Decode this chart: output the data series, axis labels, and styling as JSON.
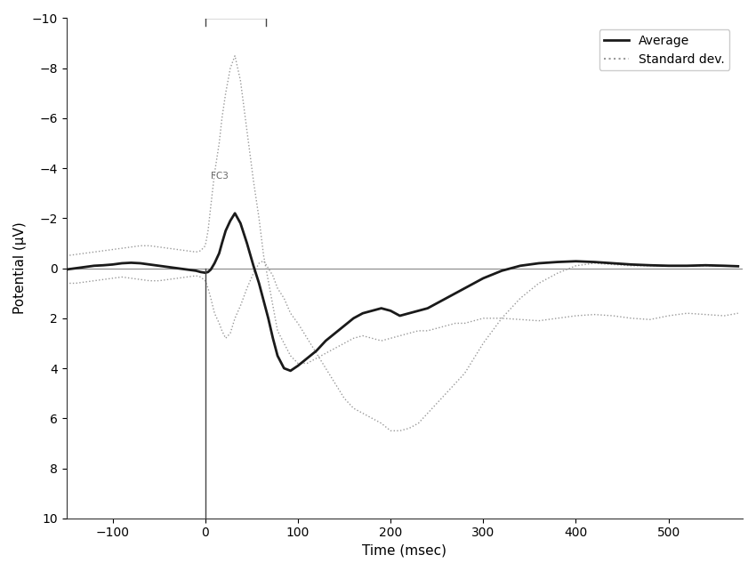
{
  "title": "",
  "xlabel": "Time (msec)",
  "ylabel": "Potential (μV)",
  "xlim": [
    -150,
    580
  ],
  "ylim": [
    10,
    -10
  ],
  "xticks": [
    -100,
    0,
    100,
    200,
    300,
    400,
    500
  ],
  "yticks": [
    -10,
    -8,
    -6,
    -4,
    -2,
    0,
    2,
    4,
    6,
    8,
    10
  ],
  "vline_x": 0,
  "hline_y": 0,
  "hbar_y": -10,
  "hbar_x1": 0,
  "hbar_x2": 65,
  "fc3_label": "FC3",
  "fc3_x": 6,
  "fc3_y": -3.7,
  "legend_labels": [
    "Average",
    "Standard dev."
  ],
  "avg_color": "#1a1a1a",
  "std_color": "#999999",
  "avg_linewidth": 2.0,
  "std_linewidth": 1.0,
  "background_color": "#ffffff",
  "avg_x": [
    -150,
    -140,
    -130,
    -120,
    -110,
    -100,
    -90,
    -80,
    -70,
    -60,
    -50,
    -40,
    -30,
    -20,
    -10,
    -5,
    0,
    3,
    6,
    10,
    15,
    18,
    22,
    27,
    32,
    38,
    45,
    52,
    58,
    63,
    68,
    73,
    78,
    85,
    92,
    100,
    110,
    120,
    130,
    140,
    150,
    160,
    170,
    180,
    190,
    200,
    210,
    220,
    230,
    240,
    250,
    260,
    270,
    280,
    290,
    300,
    320,
    340,
    360,
    380,
    400,
    420,
    440,
    460,
    480,
    500,
    520,
    540,
    560,
    575
  ],
  "avg_y": [
    0.05,
    0.0,
    -0.05,
    -0.1,
    -0.12,
    -0.15,
    -0.2,
    -0.22,
    -0.2,
    -0.15,
    -0.1,
    -0.05,
    0.0,
    0.05,
    0.1,
    0.15,
    0.18,
    0.15,
    0.05,
    -0.2,
    -0.6,
    -1.0,
    -1.5,
    -1.9,
    -2.2,
    -1.8,
    -1.0,
    -0.1,
    0.6,
    1.3,
    2.0,
    2.8,
    3.5,
    4.0,
    4.1,
    3.9,
    3.6,
    3.3,
    2.9,
    2.6,
    2.3,
    2.0,
    1.8,
    1.7,
    1.6,
    1.7,
    1.9,
    1.8,
    1.7,
    1.6,
    1.4,
    1.2,
    1.0,
    0.8,
    0.6,
    0.4,
    0.1,
    -0.1,
    -0.2,
    -0.25,
    -0.28,
    -0.25,
    -0.2,
    -0.15,
    -0.12,
    -0.1,
    -0.1,
    -0.12,
    -0.1,
    -0.08
  ],
  "std_upper_x": [
    -150,
    -140,
    -130,
    -120,
    -110,
    -100,
    -90,
    -80,
    -70,
    -60,
    -50,
    -40,
    -30,
    -20,
    -10,
    -5,
    0,
    3,
    6,
    10,
    15,
    18,
    22,
    27,
    32,
    38,
    45,
    52,
    58,
    63,
    68,
    73,
    78,
    85,
    92,
    100,
    110,
    120,
    130,
    140,
    150,
    160,
    170,
    180,
    190,
    200,
    210,
    220,
    230,
    240,
    250,
    260,
    270,
    280,
    290,
    300,
    320,
    340,
    360,
    380,
    400,
    420,
    440,
    460,
    480,
    500,
    520,
    540,
    560,
    575
  ],
  "std_upper_y": [
    -0.5,
    -0.55,
    -0.6,
    -0.65,
    -0.7,
    -0.75,
    -0.8,
    -0.85,
    -0.9,
    -0.9,
    -0.85,
    -0.8,
    -0.75,
    -0.7,
    -0.65,
    -0.7,
    -0.9,
    -1.5,
    -2.5,
    -3.8,
    -5.0,
    -6.0,
    -7.0,
    -8.0,
    -8.5,
    -7.5,
    -5.5,
    -3.5,
    -2.0,
    -0.5,
    0.5,
    1.5,
    2.5,
    3.0,
    3.5,
    3.8,
    3.8,
    3.6,
    3.4,
    3.2,
    3.0,
    2.8,
    2.7,
    2.8,
    2.9,
    2.8,
    2.7,
    2.6,
    2.5,
    2.5,
    2.4,
    2.3,
    2.2,
    2.2,
    2.1,
    2.0,
    2.0,
    2.05,
    2.1,
    2.0,
    1.9,
    1.85,
    1.9,
    2.0,
    2.05,
    1.9,
    1.8,
    1.85,
    1.9,
    1.8
  ],
  "std_lower_x": [
    -150,
    -140,
    -130,
    -120,
    -110,
    -100,
    -90,
    -80,
    -70,
    -60,
    -50,
    -40,
    -30,
    -20,
    -10,
    -5,
    0,
    3,
    6,
    10,
    15,
    18,
    22,
    27,
    32,
    38,
    45,
    52,
    58,
    63,
    68,
    73,
    78,
    85,
    92,
    100,
    110,
    120,
    130,
    140,
    150,
    160,
    170,
    180,
    190,
    200,
    210,
    220,
    230,
    240,
    250,
    260,
    270,
    280,
    290,
    300,
    320,
    340,
    360,
    380,
    400,
    420,
    440,
    460,
    480,
    500,
    520,
    540,
    560,
    575
  ],
  "std_lower_y": [
    0.6,
    0.6,
    0.55,
    0.5,
    0.45,
    0.4,
    0.35,
    0.4,
    0.45,
    0.5,
    0.5,
    0.45,
    0.4,
    0.35,
    0.3,
    0.35,
    0.5,
    0.8,
    1.2,
    1.8,
    2.2,
    2.5,
    2.8,
    2.6,
    2.0,
    1.5,
    0.8,
    0.2,
    -0.2,
    -0.3,
    0.0,
    0.3,
    0.8,
    1.2,
    1.8,
    2.2,
    2.8,
    3.4,
    4.0,
    4.6,
    5.2,
    5.6,
    5.8,
    6.0,
    6.2,
    6.5,
    6.5,
    6.4,
    6.2,
    5.8,
    5.4,
    5.0,
    4.6,
    4.2,
    3.6,
    3.0,
    2.0,
    1.2,
    0.6,
    0.2,
    -0.1,
    -0.2,
    -0.15,
    -0.1,
    -0.1,
    -0.1,
    -0.1,
    -0.1,
    -0.1,
    -0.1
  ]
}
